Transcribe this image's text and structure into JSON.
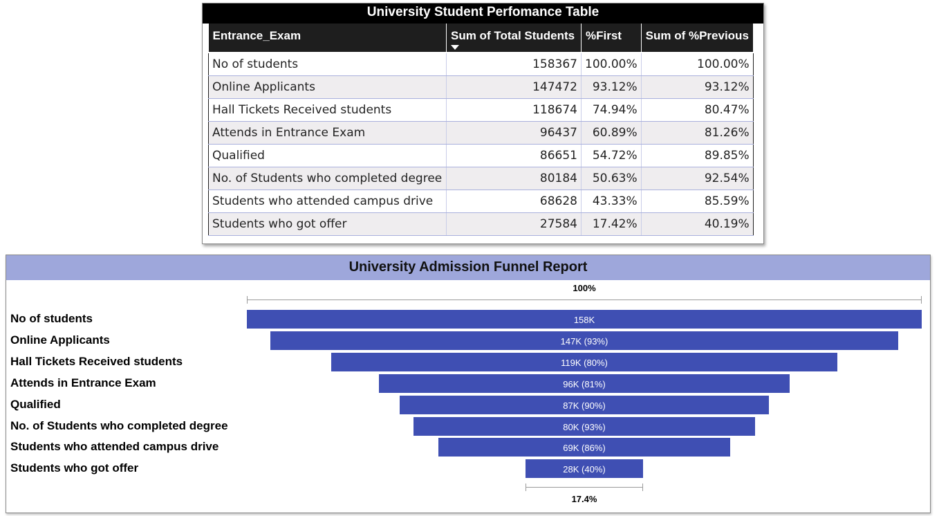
{
  "chart_data": [
    {
      "type": "table",
      "title": "University Student Perfomance Table",
      "columns": [
        "Entrance_Exam",
        "Sum of Total Students",
        "%First",
        "Sum of %Previous"
      ],
      "sorted_column": "Sum of Total Students",
      "sort_direction": "descending",
      "rows": [
        [
          "No of students",
          "158367",
          "100.00%",
          "100.00%"
        ],
        [
          "Online Applicants",
          "147472",
          "93.12%",
          "93.12%"
        ],
        [
          "Hall Tickets Received students",
          "118674",
          "74.94%",
          "80.47%"
        ],
        [
          "Attends in Entrance Exam",
          "96437",
          "60.89%",
          "81.26%"
        ],
        [
          "Qualified",
          "86651",
          "54.72%",
          "89.85%"
        ],
        [
          "No. of Students who completed degree",
          "80184",
          "50.63%",
          "92.54%"
        ],
        [
          "Students who attended campus drive",
          "68628",
          "43.33%",
          "85.59%"
        ],
        [
          "Students who got offer",
          "27584",
          "17.42%",
          "40.19%"
        ]
      ]
    },
    {
      "type": "funnel",
      "title": "University Admission Funnel Report",
      "categories": [
        "No of students",
        "Online Applicants",
        "Hall Tickets Received students",
        "Attends in Entrance Exam",
        "Qualified",
        "No. of Students who completed degree",
        "Students who attended campus drive",
        "Students who got offer"
      ],
      "values": [
        158367,
        147472,
        118674,
        96437,
        86651,
        80184,
        68628,
        27584
      ],
      "data_labels": [
        "158K",
        "147K (93%)",
        "119K (80%)",
        "96K (81%)",
        "87K (90%)",
        "80K (93%)",
        "69K (86%)",
        "28K (40%)"
      ],
      "top_label": "100%",
      "bottom_label": "17.4%",
      "bar_color": "#3f4fb3"
    }
  ]
}
